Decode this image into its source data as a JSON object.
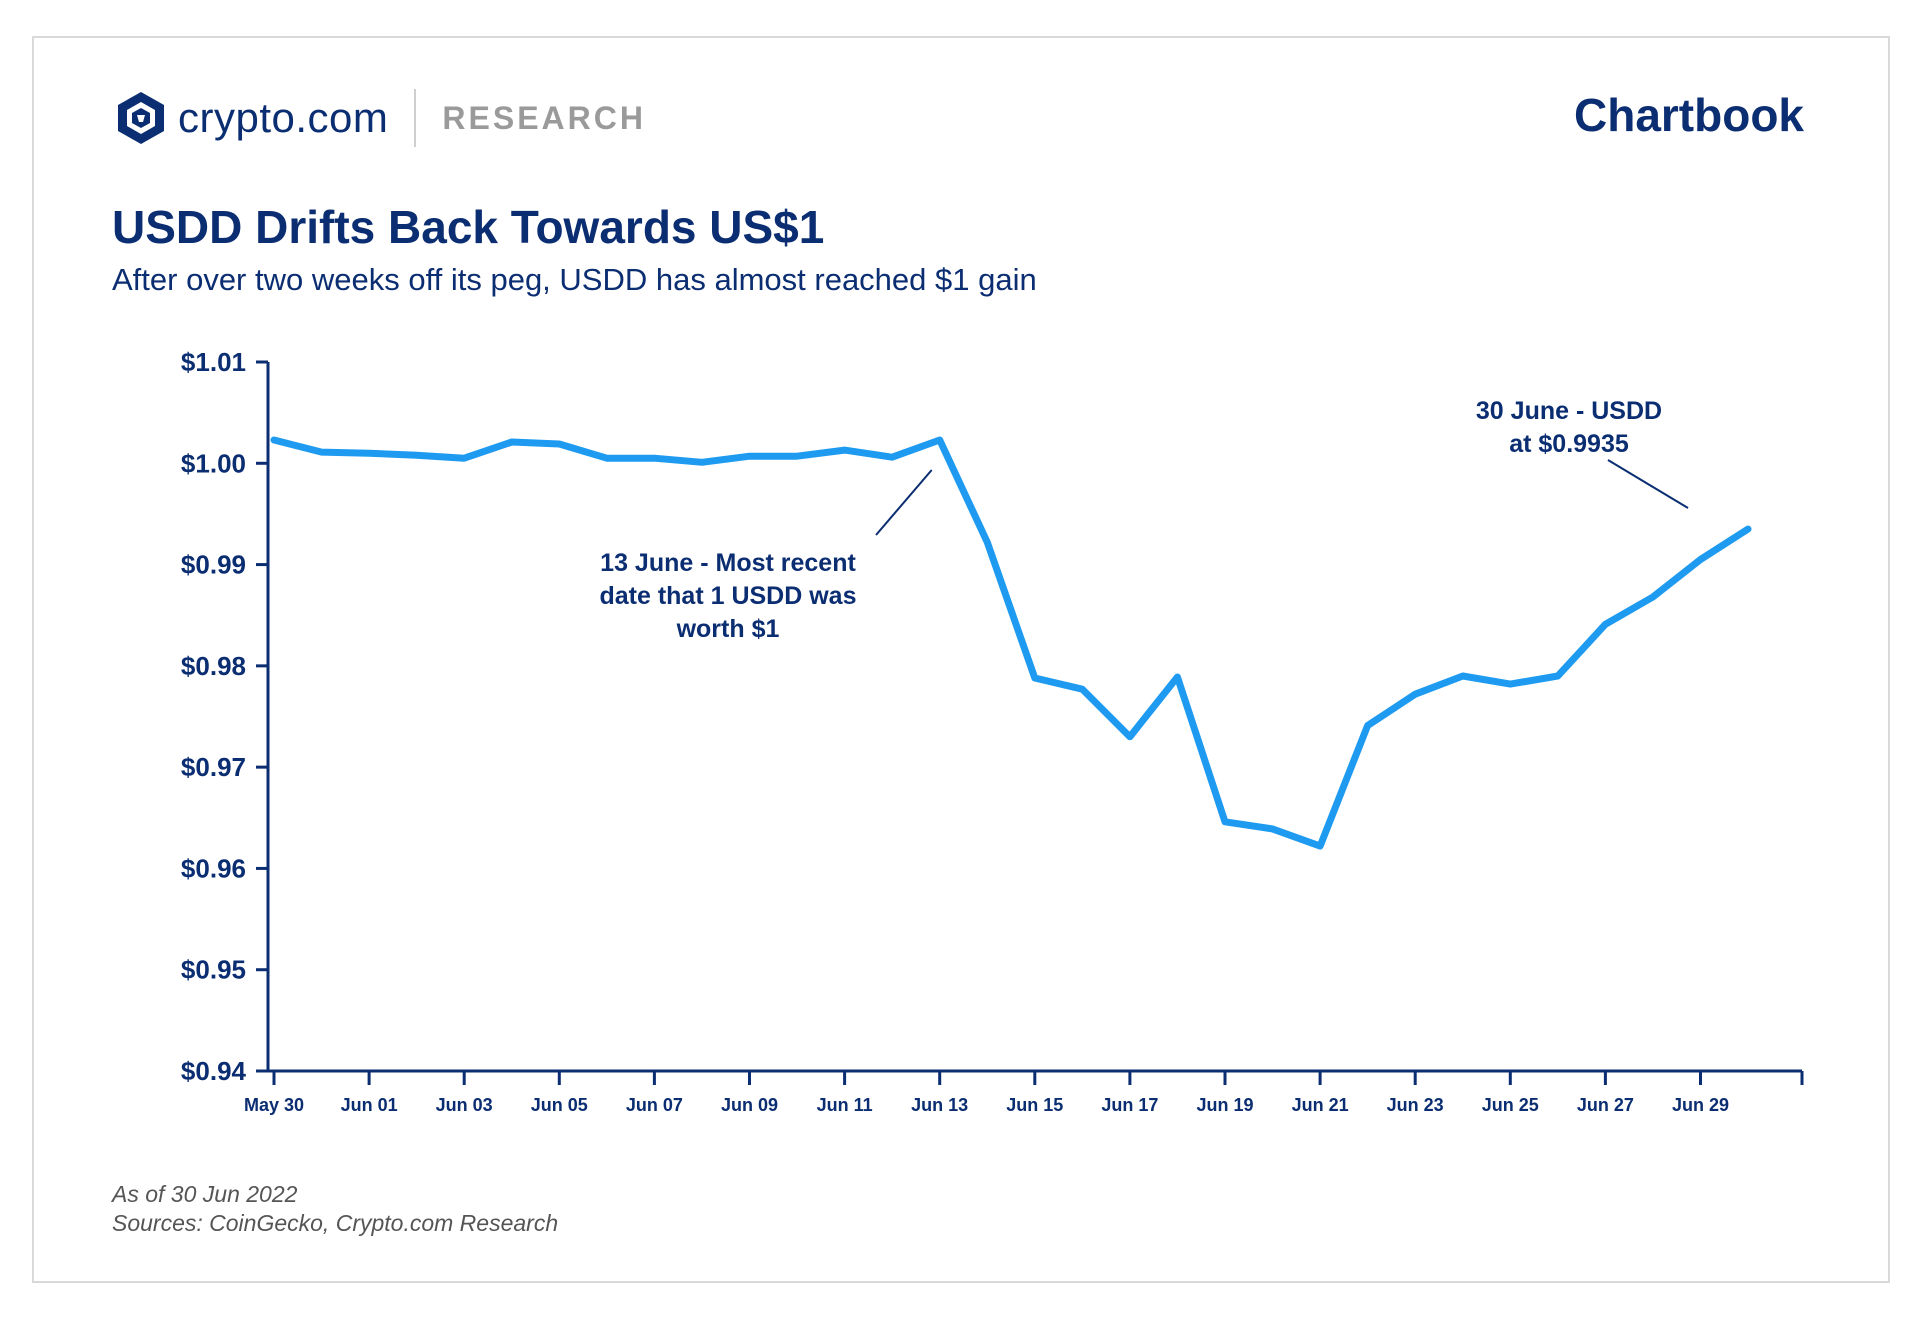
{
  "header": {
    "brand": "crypto.com",
    "section": "RESEARCH",
    "product": "Chartbook",
    "logo_icon": "crypto-com-lion-shield-icon"
  },
  "title": "USDD Drifts Back Towards US$1",
  "subtitle": "After over two weeks off its peg, USDD has almost reached $1 gain",
  "footer": {
    "as_of": "As of 30 Jun 2022",
    "sources": "Sources: CoinGecko, Crypto.com Research"
  },
  "colors": {
    "brand_navy": "#0b2d71",
    "line_blue": "#1e9bf0",
    "muted_grey": "#9a9a9a"
  },
  "chart_data": {
    "type": "line",
    "title": "USDD Drifts Back Towards US$1",
    "xlabel": "",
    "ylabel": "",
    "x": [
      "2022-05-30",
      "2022-05-31",
      "2022-06-01",
      "2022-06-02",
      "2022-06-03",
      "2022-06-04",
      "2022-06-05",
      "2022-06-06",
      "2022-06-07",
      "2022-06-08",
      "2022-06-09",
      "2022-06-10",
      "2022-06-11",
      "2022-06-12",
      "2022-06-13",
      "2022-06-14",
      "2022-06-15",
      "2022-06-16",
      "2022-06-17",
      "2022-06-18",
      "2022-06-19",
      "2022-06-20",
      "2022-06-21",
      "2022-06-22",
      "2022-06-23",
      "2022-06-24",
      "2022-06-25",
      "2022-06-26",
      "2022-06-27",
      "2022-06-28",
      "2022-06-29",
      "2022-06-30"
    ],
    "series": [
      {
        "values": [
          1.0023,
          1.0011,
          1.001,
          1.0008,
          1.0005,
          1.0021,
          1.0019,
          1.0005,
          1.0005,
          1.0001,
          1.0007,
          1.0007,
          1.0013,
          1.0006,
          1.0023,
          0.9922,
          0.9788,
          0.9777,
          0.973,
          0.9789,
          0.9646,
          0.9639,
          0.9622,
          0.9741,
          0.9772,
          0.979,
          0.9782,
          0.979,
          0.9841,
          0.9868,
          0.9905,
          0.9935
        ]
      }
    ],
    "ylim": [
      0.94,
      1.01
    ],
    "yticks": [
      1.01,
      1.0,
      0.99,
      0.98,
      0.97,
      0.96,
      0.95,
      0.94
    ],
    "ytick_labels": [
      "$1.01",
      "$1.00",
      "$0.99",
      "$0.98",
      "$0.97",
      "$0.96",
      "$0.95",
      "$0.94"
    ],
    "xtick_labels": [
      "May 30",
      "Jun 01",
      "Jun 03",
      "Jun 05",
      "Jun 07",
      "Jun 09",
      "Jun 11",
      "Jun 13",
      "Jun 15",
      "Jun 17",
      "Jun 19",
      "Jun 21",
      "Jun 23",
      "Jun 25",
      "Jun 27",
      "Jun 29"
    ],
    "xtick_dates": [
      "2022-05-30",
      "2022-06-01",
      "2022-06-03",
      "2022-06-05",
      "2022-06-07",
      "2022-06-09",
      "2022-06-11",
      "2022-06-13",
      "2022-06-15",
      "2022-06-17",
      "2022-06-19",
      "2022-06-21",
      "2022-06-23",
      "2022-06-25",
      "2022-06-27",
      "2022-06-29"
    ],
    "grid": false,
    "annotations": [
      {
        "lines": [
          "13 June - Most recent",
          "date that 1 USDD was",
          "worth $1"
        ],
        "points_to": "2022-06-13"
      },
      {
        "lines": [
          "30 June - USDD",
          "at $0.9935"
        ],
        "points_to": "2022-06-30"
      }
    ]
  }
}
